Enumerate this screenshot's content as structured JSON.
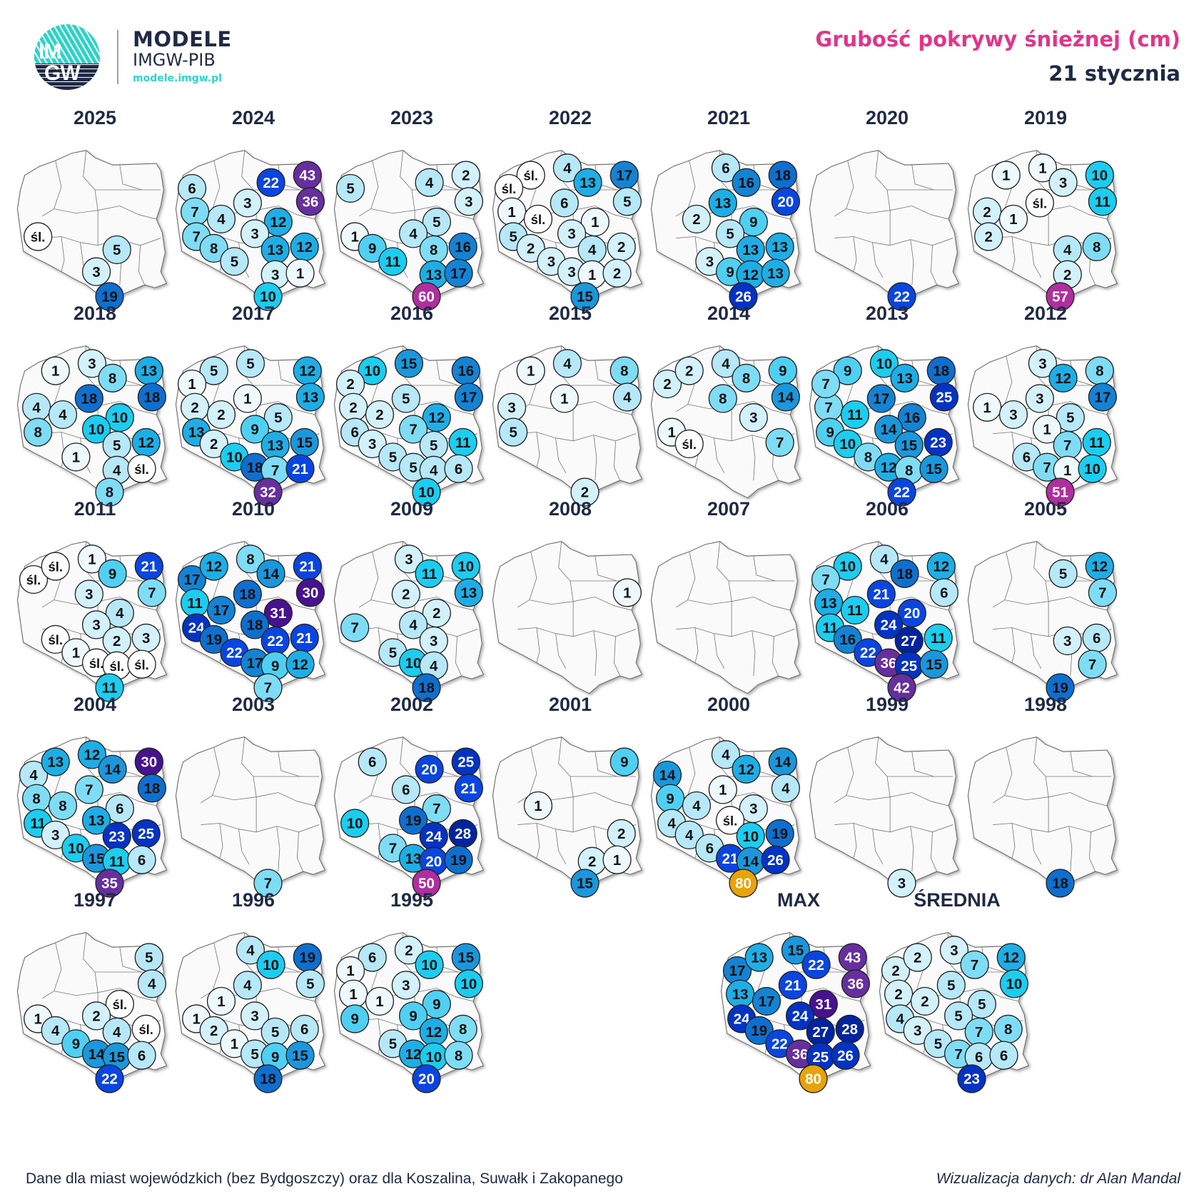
{
  "header": {
    "brand_line1": "MODELE",
    "brand_line2": "IMGW-PIB",
    "brand_url": "modele.imgw.pl",
    "logo_text_top": "IM",
    "logo_text_bottom": "GW",
    "title": "Grubość pokrywy śnieżnej (cm)",
    "subtitle": "21 stycznia"
  },
  "footer": {
    "note": "Dane dla miast wojewódzkich (bez Bydgoszczy) oraz dla Koszalina, Suwałk i Zakopanego",
    "credit": "Wizualizacja danych: dr Alan Mandal"
  },
  "chart_data": {
    "type": "small-multiples-bubble-map",
    "title": "Grubość pokrywy śnieżnej (cm)",
    "subtitle": "21 stycznia",
    "unit": "cm",
    "trace_label": "śl.",
    "stations": [
      "Szczecin",
      "Koszalin",
      "Gdańsk",
      "Olsztyn",
      "Suwałki",
      "Białystok",
      "Toruń",
      "Gorzów Wlkp.",
      "Poznań",
      "Warszawa",
      "Zielona Góra",
      "Łódź",
      "Wrocław",
      "Kielce",
      "Lublin",
      "Opole",
      "Katowice",
      "Kraków",
      "Rzeszów",
      "Zakopane"
    ],
    "color_scale": [
      {
        "max": 0,
        "color": "#ffffff"
      },
      {
        "max": 1,
        "color": "#eef9fd"
      },
      {
        "max": 3,
        "color": "#d3f1fb"
      },
      {
        "max": 6,
        "color": "#b6e8f8"
      },
      {
        "max": 8,
        "color": "#7fdcf5"
      },
      {
        "max": 9,
        "color": "#4fd0f2"
      },
      {
        "max": 11,
        "color": "#1ccdf0"
      },
      {
        "max": 13,
        "color": "#1eaee6"
      },
      {
        "max": 15,
        "color": "#1b97dc"
      },
      {
        "max": 17,
        "color": "#1483d4"
      },
      {
        "max": 19,
        "color": "#0f6fcf"
      },
      {
        "max": 22,
        "color": "#0a45e0"
      },
      {
        "max": 26,
        "color": "#0433c4"
      },
      {
        "max": 28,
        "color": "#03249f"
      },
      {
        "max": 31,
        "color": "#46128f"
      },
      {
        "max": 43,
        "color": "#662f9e"
      },
      {
        "max": 60,
        "color": "#b02e9e"
      },
      {
        "max": 999,
        "color": "#e8a30a"
      }
    ],
    "panels": [
      {
        "label": "2025",
        "values": {
          "Zielona Góra": "śl.",
          "Kielce": 5,
          "Katowice": 3,
          "Zakopane": 19
        }
      },
      {
        "label": "2024",
        "values": {
          "Olsztyn": 22,
          "Suwałki": 43,
          "Białystok": 36,
          "Toruń": 3,
          "Szczecin": 6,
          "Poznań": 4,
          "Warszawa": 12,
          "Gorzów Wlkp.": 7,
          "Łódź": 3,
          "Zielona Góra": 7,
          "Wrocław": 8,
          "Kielce": 13,
          "Lublin": 12,
          "Opole": 5,
          "Kraków": 3,
          "Rzeszów": 1,
          "Zakopane": 10
        }
      },
      {
        "label": "2023",
        "values": {
          "Olsztyn": 4,
          "Suwałki": 2,
          "Białystok": 3,
          "Warszawa": 5,
          "Łódź": 4,
          "Szczecin": 5,
          "Zielona Góra": 1,
          "Kielce": 8,
          "Lublin": 16,
          "Wrocław": 9,
          "Opole": 11,
          "Kraków": 13,
          "Rzeszów": 17,
          "Zakopane": 60
        }
      },
      {
        "label": "2022",
        "values": {
          "Koszalin": "śl.",
          "Gdańsk": 4,
          "Olsztyn": 13,
          "Suwałki": 17,
          "Szczecin": "śl.",
          "Toruń": 6,
          "Białystok": 5,
          "Gorzów Wlkp.": 1,
          "Poznań": "śl.",
          "Warszawa": 1,
          "Zielona Góra": 5,
          "Łódź": 3,
          "Wrocław": 2,
          "Kielce": 4,
          "Lublin": 2,
          "Opole": 3,
          "Katowice": 3,
          "Kraków": 1,
          "Rzeszów": 2,
          "Zakopane": 15
        }
      },
      {
        "label": "2021",
        "values": {
          "Gdańsk": 6,
          "Olsztyn": 16,
          "Suwałki": 18,
          "Toruń": 13,
          "Białystok": 20,
          "Poznań": 2,
          "Warszawa": 9,
          "Łódź": 5,
          "Kielce": 13,
          "Lublin": 13,
          "Opole": 3,
          "Katowice": 9,
          "Kraków": 12,
          "Rzeszów": 13,
          "Zakopane": 26
        }
      },
      {
        "label": "2020",
        "values": {
          "Zakopane": 22
        }
      },
      {
        "label": "2019",
        "values": {
          "Koszalin": 1,
          "Gdańsk": 1,
          "Olsztyn": 3,
          "Suwałki": 10,
          "Toruń": "śl.",
          "Białystok": 11,
          "Gorzów Wlkp.": 2,
          "Poznań": 1,
          "Zielona Góra": 2,
          "Kielce": 4,
          "Lublin": 8,
          "Kraków": 2,
          "Zakopane": 57
        }
      },
      {
        "label": "2018",
        "values": {
          "Koszalin": 1,
          "Gdańsk": 3,
          "Olsztyn": 8,
          "Suwałki": 13,
          "Białystok": 18,
          "Toruń": 18,
          "Gorzów Wlkp.": 4,
          "Poznań": 4,
          "Zielona Góra": 8,
          "Warszawa": 10,
          "Łódź": 10,
          "Kielce": 5,
          "Lublin": 12,
          "Opole": 1,
          "Kraków": 4,
          "Rzeszów": "śl.",
          "Zakopane": 8
        }
      },
      {
        "label": "2017",
        "values": {
          "Koszalin": 5,
          "Gdańsk": 5,
          "Szczecin": 1,
          "Suwałki": 12,
          "Białystok": 13,
          "Toruń": 1,
          "Gorzów Wlkp.": 2,
          "Poznań": 2,
          "Warszawa": 5,
          "Łódź": 9,
          "Zielona Góra": 13,
          "Wrocław": 2,
          "Kielce": 13,
          "Lublin": 15,
          "Opole": 10,
          "Katowice": 18,
          "Kraków": 7,
          "Rzeszów": 21,
          "Zakopane": 32
        }
      },
      {
        "label": "2016",
        "values": {
          "Koszalin": 10,
          "Gdańsk": 15,
          "Szczecin": 2,
          "Suwałki": 16,
          "Białystok": 17,
          "Toruń": 5,
          "Gorzów Wlkp.": 2,
          "Poznań": 2,
          "Warszawa": 12,
          "Łódź": 7,
          "Zielona Góra": 6,
          "Wrocław": 3,
          "Kielce": 5,
          "Lublin": 11,
          "Opole": 5,
          "Katowice": 5,
          "Kraków": 4,
          "Rzeszów": 6,
          "Zakopane": 10
        }
      },
      {
        "label": "2015",
        "values": {
          "Koszalin": 1,
          "Gdańsk": 4,
          "Suwałki": 8,
          "Toruń": 1,
          "Białystok": 4,
          "Gorzów Wlkp.": 3,
          "Zielona Góra": 5,
          "Zakopane": 2
        }
      },
      {
        "label": "2014",
        "values": {
          "Szczecin": 2,
          "Koszalin": 2,
          "Gdańsk": 4,
          "Olsztyn": 8,
          "Suwałki": 9,
          "Toruń": 8,
          "Białystok": 14,
          "Warszawa": 3,
          "Zielona Góra": 1,
          "Wrocław": "śl.",
          "Lublin": 7
        }
      },
      {
        "label": "2013",
        "values": {
          "Gorzów Wlkp.": 7,
          "Koszalin": 9,
          "Gdańsk": 10,
          "Olsztyn": 13,
          "Suwałki": 18,
          "Białystok": 25,
          "Toruń": 17,
          "Szczecin": 7,
          "Poznań": 11,
          "Warszawa": 16,
          "Zielona Góra": 9,
          "Łódź": 14,
          "Wrocław": 10,
          "Kielce": 15,
          "Lublin": 23,
          "Opole": 8,
          "Katowice": 12,
          "Kraków": 8,
          "Rzeszów": 15,
          "Zakopane": 22
        }
      },
      {
        "label": "2012",
        "values": {
          "Gdańsk": 3,
          "Olsztyn": 12,
          "Suwałki": 8,
          "Białystok": 17,
          "Toruń": 3,
          "Gorzów Wlkp.": 1,
          "Poznań": 3,
          "Warszawa": 5,
          "Łódź": 1,
          "Kielce": 7,
          "Lublin": 11,
          "Opole": 6,
          "Katowice": 7,
          "Kraków": 1,
          "Rzeszów": 10,
          "Zakopane": 51
        }
      },
      {
        "label": "2011",
        "values": {
          "Szczecin": "śl.",
          "Koszalin": "śl.",
          "Gdańsk": 1,
          "Olsztyn": 9,
          "Suwałki": 21,
          "Białystok": 7,
          "Toruń": 3,
          "Warszawa": 4,
          "Łódź": 3,
          "Kielce": 2,
          "Lublin": 3,
          "Wrocław": "śl.",
          "Opole": 1,
          "Katowice": "śl.",
          "Kraków": "śl.",
          "Rzeszów": "śl.",
          "Zakopane": 11
        }
      },
      {
        "label": "2010",
        "values": {
          "Szczecin": 17,
          "Koszalin": 12,
          "Gdańsk": 8,
          "Olsztyn": 14,
          "Suwałki": 21,
          "Białystok": 30,
          "Toruń": 18,
          "Gorzów Wlkp.": 11,
          "Poznań": 17,
          "Warszawa": 31,
          "Łódź": 18,
          "Zielona Góra": 24,
          "Wrocław": 19,
          "Kielce": 22,
          "Lublin": 21,
          "Opole": 22,
          "Katowice": 17,
          "Kraków": 9,
          "Rzeszów": 12,
          "Zakopane": 7
        }
      },
      {
        "label": "2009",
        "values": {
          "Gdańsk": 3,
          "Olsztyn": 11,
          "Suwałki": 10,
          "Białystok": 13,
          "Toruń": 2,
          "Warszawa": 2,
          "Łódź": 4,
          "Kielce": 3,
          "Zielona Góra": 7,
          "Opole": 5,
          "Katowice": 10,
          "Kraków": 4,
          "Zakopane": 18
        }
      },
      {
        "label": "2008",
        "values": {
          "Białystok": 1
        }
      },
      {
        "label": "2007",
        "values": {}
      },
      {
        "label": "2006",
        "values": {
          "Koszalin": 10,
          "Gdańsk": 4,
          "Olsztyn": 18,
          "Suwałki": 12,
          "Białystok": 6,
          "Szczecin": 7,
          "Toruń": 21,
          "Gorzów Wlkp.": 13,
          "Poznań": 11,
          "Warszawa": 20,
          "Zielona Góra": 11,
          "Łódź": 24,
          "Wrocław": 16,
          "Kielce": 27,
          "Lublin": 11,
          "Opole": 22,
          "Katowice": 36,
          "Kraków": 25,
          "Rzeszów": 15,
          "Zakopane": 42
        }
      },
      {
        "label": "2005",
        "values": {
          "Olsztyn": 5,
          "Suwałki": 12,
          "Białystok": 7,
          "Kielce": 3,
          "Lublin": 6,
          "Rzeszów": 7,
          "Zakopane": 19
        }
      },
      {
        "label": "2004",
        "values": {
          "Szczecin": 4,
          "Koszalin": 13,
          "Gdańsk": 12,
          "Olsztyn": 14,
          "Suwałki": 30,
          "Białystok": 18,
          "Toruń": 7,
          "Gorzów Wlkp.": 8,
          "Poznań": 8,
          "Warszawa": 6,
          "Zielona Góra": 11,
          "Łódź": 13,
          "Wrocław": 3,
          "Kielce": 23,
          "Lublin": 25,
          "Opole": 10,
          "Katowice": 15,
          "Kraków": 11,
          "Rzeszów": 6,
          "Zakopane": 35
        }
      },
      {
        "label": "2003",
        "values": {
          "Zakopane": 7
        }
      },
      {
        "label": "2002",
        "values": {
          "Koszalin": 6,
          "Olsztyn": 20,
          "Suwałki": 25,
          "Białystok": 21,
          "Toruń": 6,
          "Warszawa": 7,
          "Łódź": 19,
          "Zielona Góra": 10,
          "Kielce": 24,
          "Lublin": 28,
          "Opole": 7,
          "Katowice": 13,
          "Kraków": 20,
          "Rzeszów": 19,
          "Zakopane": 50
        }
      },
      {
        "label": "2001",
        "values": {
          "Suwałki": 9,
          "Poznań": 1,
          "Lublin": 2,
          "Kraków": 2,
          "Rzeszów": 1,
          "Zakopane": 15
        }
      },
      {
        "label": "2000",
        "values": {
          "Gdańsk": 4,
          "Olsztyn": 12,
          "Suwałki": 14,
          "Białystok": 4,
          "Szczecin": 14,
          "Toruń": 1,
          "Gorzów Wlkp.": 9,
          "Poznań": 4,
          "Warszawa": 3,
          "Zielona Góra": 4,
          "Łódź": "śl.",
          "Wrocław": 4,
          "Kielce": 10,
          "Lublin": 19,
          "Opole": 6,
          "Katowice": 21,
          "Kraków": 14,
          "Rzeszów": 26,
          "Zakopane": 80
        }
      },
      {
        "label": "1999",
        "values": {
          "Zakopane": 3
        }
      },
      {
        "label": "1998",
        "values": {
          "Zakopane": 18
        }
      },
      {
        "label": "1997",
        "values": {
          "Suwałki": 5,
          "Białystok": 4,
          "Warszawa": "śl.",
          "Łódź": 2,
          "Lublin": "śl.",
          "Zielona Góra": 1,
          "Wrocław": 4,
          "Kielce": 4,
          "Opole": 9,
          "Katowice": 14,
          "Kraków": 15,
          "Rzeszów": 6,
          "Zakopane": 22
        }
      },
      {
        "label": "1996",
        "values": {
          "Gdańsk": 4,
          "Olsztyn": 10,
          "Suwałki": 19,
          "Białystok": 5,
          "Toruń": 4,
          "Poznań": 1,
          "Łódź": 3,
          "Zielona Góra": 1,
          "Wrocław": 2,
          "Opole": 1,
          "Kielce": 5,
          "Lublin": 6,
          "Katowice": 5,
          "Kraków": 9,
          "Rzeszów": 15,
          "Zakopane": 18
        }
      },
      {
        "label": "1995",
        "values": {
          "Koszalin": 6,
          "Gdańsk": 2,
          "Szczecin": 1,
          "Olsztyn": 10,
          "Suwałki": 15,
          "Białystok": 10,
          "Toruń": 3,
          "Gorzów Wlkp.": 1,
          "Poznań": 1,
          "Zielona Góra": 9,
          "Warszawa": 9,
          "Łódź": 9,
          "Kielce": 12,
          "Lublin": 8,
          "Opole": 5,
          "Katowice": 12,
          "Kraków": 10,
          "Rzeszów": 8,
          "Zakopane": 20
        }
      },
      {
        "label": "MAX",
        "values": {
          "Szczecin": 17,
          "Koszalin": 13,
          "Gdańsk": 15,
          "Olsztyn": 22,
          "Suwałki": 43,
          "Białystok": 36,
          "Toruń": 21,
          "Gorzów Wlkp.": 13,
          "Poznań": 17,
          "Warszawa": 31,
          "Zielona Góra": 24,
          "Łódź": 24,
          "Wrocław": 19,
          "Kielce": 27,
          "Lublin": 28,
          "Opole": 22,
          "Katowice": 36,
          "Kraków": 25,
          "Rzeszów": 26,
          "Zakopane": 80
        }
      },
      {
        "label": "ŚREDNIA",
        "values": {
          "Szczecin": 2,
          "Koszalin": 2,
          "Gdańsk": 3,
          "Olsztyn": 7,
          "Suwałki": 12,
          "Białystok": 10,
          "Toruń": 5,
          "Gorzów Wlkp.": 2,
          "Poznań": 2,
          "Warszawa": 5,
          "Zielona Góra": 4,
          "Łódź": 5,
          "Wrocław": 3,
          "Kielce": 7,
          "Lublin": 8,
          "Opole": 5,
          "Katowice": 7,
          "Kraków": 6,
          "Rzeszów": 6,
          "Zakopane": 23
        }
      }
    ]
  }
}
